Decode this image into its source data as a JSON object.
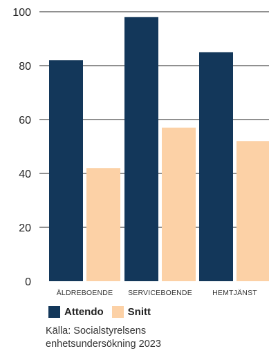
{
  "colors": {
    "attendo": "#13375a",
    "snitt": "#fcd1a6",
    "grid": "#222222"
  },
  "chart_data": {
    "type": "bar",
    "categories": [
      "ÄLDREBOENDE",
      "SERVICEBOENDE",
      "HEMTJÄNST"
    ],
    "series": [
      {
        "name": "Attendo",
        "values": [
          82,
          98,
          85
        ]
      },
      {
        "name": "Snitt",
        "values": [
          42,
          57,
          52
        ]
      }
    ],
    "yticks": [
      0,
      20,
      40,
      60,
      80,
      100
    ],
    "ylim": [
      0,
      100
    ],
    "grid": true,
    "legend_position": "bottom-left"
  },
  "source": {
    "line1": "Källa: Socialstyrelsens",
    "line2": "enhetsundersökning 2023"
  }
}
